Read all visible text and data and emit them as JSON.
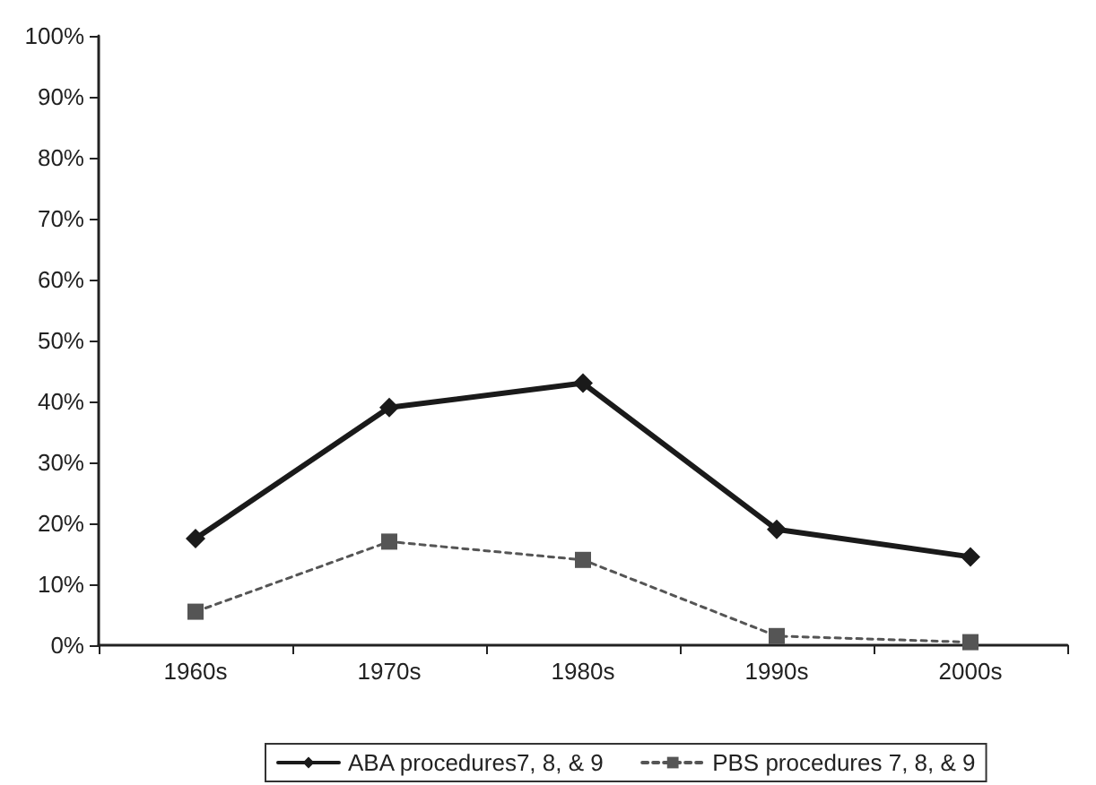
{
  "chart_data": {
    "type": "line",
    "categories": [
      "1960s",
      "1970s",
      "1980s",
      "1990s",
      "2000s"
    ],
    "series": [
      {
        "name": "ABA procedures7, 8, & 9",
        "color": "#1a1a1a",
        "values": [
          17.5,
          39,
          43,
          19,
          14.5
        ],
        "marker": "diamond",
        "line_style": "solid"
      },
      {
        "name": "PBS procedures 7, 8, & 9",
        "color": "#555555",
        "values": [
          5.5,
          17,
          14,
          1.5,
          0.5
        ],
        "marker": "square",
        "line_style": "dotted"
      }
    ],
    "ylim": [
      0,
      100
    ],
    "yticks": [
      {
        "value": 0,
        "label": "0%"
      },
      {
        "value": 10,
        "label": "10%"
      },
      {
        "value": 20,
        "label": "20%"
      },
      {
        "value": 30,
        "label": "30%"
      },
      {
        "value": 40,
        "label": "40%"
      },
      {
        "value": 50,
        "label": "50%"
      },
      {
        "value": 60,
        "label": "60%"
      },
      {
        "value": 70,
        "label": "70%"
      },
      {
        "value": 80,
        "label": "80%"
      },
      {
        "value": 90,
        "label": "90%"
      },
      {
        "value": 100,
        "label": "100%"
      }
    ],
    "grid": false,
    "legend": "bottom"
  }
}
